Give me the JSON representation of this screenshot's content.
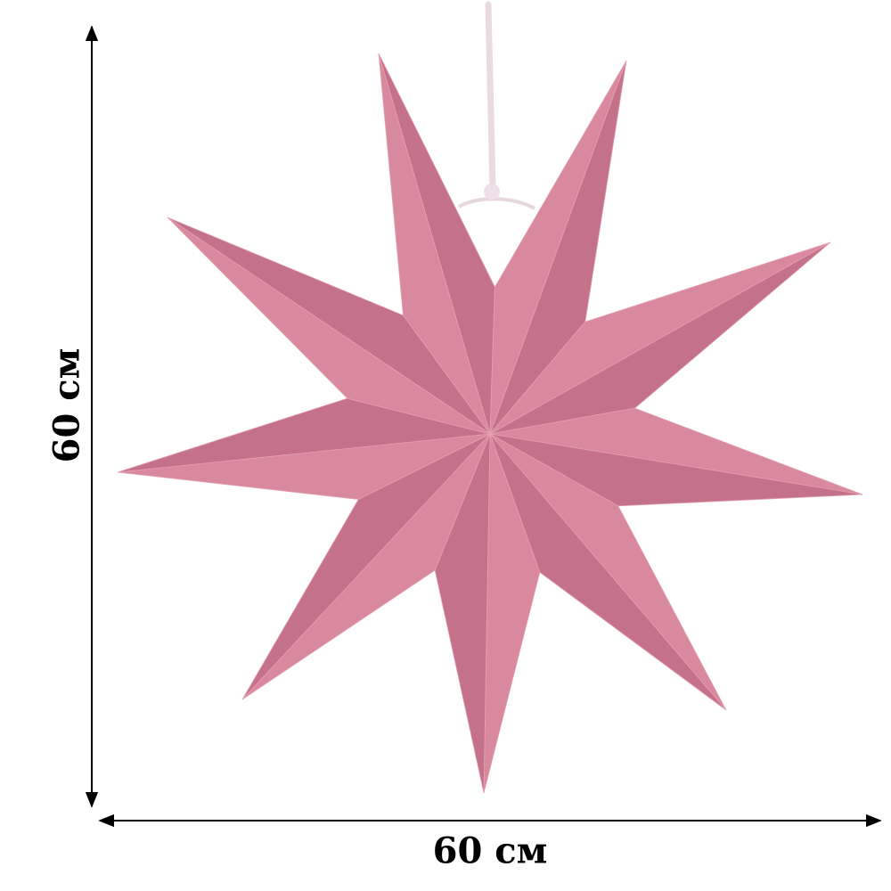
{
  "product": {
    "name": "",
    "colors": {
      "star_light": "#e4a0b1",
      "star_mid": "#d9899d",
      "star_dark": "#c4718a",
      "cord": "#f1e4ea"
    }
  },
  "dimensions": {
    "height_label": "60 см",
    "width_label": "60 см"
  }
}
